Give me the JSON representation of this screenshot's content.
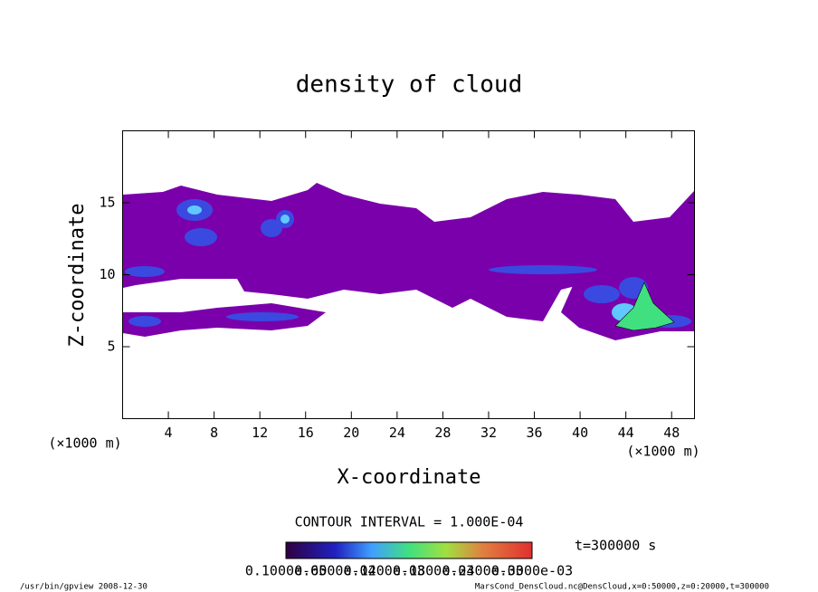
{
  "chart_data": {
    "type": "contour",
    "title": "density of cloud",
    "xlabel": "X-coordinate",
    "ylabel": "Z-coordinate",
    "xunit": "(×1000 m)",
    "xunit_right": "(×1000 m)",
    "xlim": [
      0,
      50
    ],
    "xticks": [
      4,
      8,
      12,
      16,
      20,
      24,
      28,
      32,
      36,
      40,
      44,
      48
    ],
    "ylim": [
      0,
      20
    ],
    "yticks": [
      5,
      10,
      15
    ],
    "contour_interval": "CONTOUR INTERVAL = 1.000E-04",
    "time_label": "t=300000 s",
    "colorbar_labels": [
      "0.1000e-05",
      "0.6000e-04",
      "0.1200e-03",
      "0.1800e-03",
      "0.2400e-03",
      "0.3000e-03"
    ],
    "footer_left": "/usr/bin/gpview  2008-12-30",
    "footer_right": "MarsCond_DensCloud.nc@DensCloud,x=0:50000,z=0:20000,t=300000"
  }
}
